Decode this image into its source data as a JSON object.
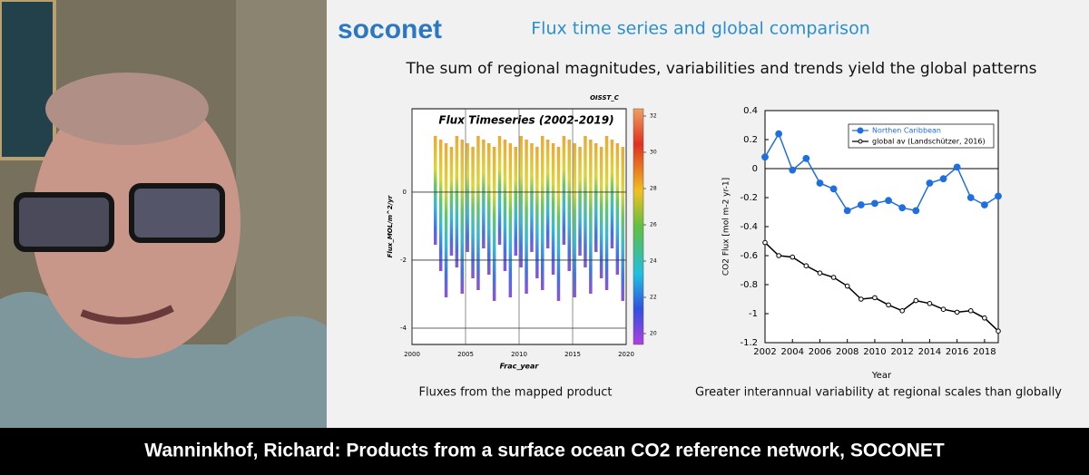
{
  "video": {
    "caption": "Wanninkhof, Richard: Products from a surface ocean CO2 reference network, SOCONET"
  },
  "slide": {
    "logo": "soconet",
    "title": "Flux time series and global comparison",
    "subtitle": "The sum of regional magnitudes, variabilities and trends yield the global patterns",
    "captions": [
      "Fluxes from the mapped product",
      "Greater interannual variability at regional scales than globally"
    ]
  },
  "chart_data": [
    {
      "type": "scatter",
      "title": "Flux Timeseries (2002-2019)",
      "label": "OISST_C",
      "xlabel": "Frac_year",
      "ylabel": "Flux_MOL/m^2/yr",
      "xlim": [
        2000,
        2020
      ],
      "xticks": [
        2000,
        2005,
        2010,
        2015,
        2020
      ],
      "ylim": [
        -4.48,
        2.45
      ],
      "yticks": [
        0,
        -2,
        -4
      ],
      "grid": true,
      "colorbar": {
        "lim": [
          19.4,
          32.4
        ],
        "ticks": [
          32,
          30,
          28,
          26,
          24,
          22,
          20
        ]
      }
    },
    {
      "type": "line",
      "xlabel": "Year",
      "ylabel": "CO2 Flux [mol m-2 yr-1]",
      "x": [
        2002,
        2003,
        2004,
        2005,
        2006,
        2007,
        2008,
        2009,
        2010,
        2011,
        2012,
        2013,
        2014,
        2015,
        2016,
        2017,
        2018,
        2019
      ],
      "series": [
        {
          "name": "Northen Caribbean",
          "color": "#1f6fe0",
          "marker": "filled",
          "values": [
            0.08,
            0.24,
            -0.01,
            0.07,
            -0.1,
            -0.14,
            -0.29,
            -0.25,
            -0.24,
            -0.22,
            -0.27,
            -0.29,
            -0.1,
            -0.07,
            0.01,
            -0.2,
            -0.25,
            -0.19
          ]
        },
        {
          "name": "global av (Landschützer, 2016)",
          "color": "#000000",
          "marker": "open",
          "values": [
            -0.51,
            -0.6,
            -0.61,
            -0.67,
            -0.72,
            -0.75,
            -0.81,
            -0.9,
            -0.89,
            -0.94,
            -0.98,
            -0.91,
            -0.93,
            -0.97,
            -0.99,
            -0.98,
            -1.03,
            -1.12
          ]
        }
      ],
      "xlim": [
        2002,
        2019
      ],
      "xticks": [
        2002,
        2004,
        2006,
        2008,
        2010,
        2012,
        2014,
        2016,
        2018
      ],
      "ylim": [
        -1.2,
        0.4
      ],
      "yticks": [
        0.4,
        0.2,
        0,
        -0.2,
        -0.4,
        -0.6,
        -0.8,
        -1,
        -1.2
      ],
      "zero_line": true,
      "legend": "upper right"
    }
  ]
}
